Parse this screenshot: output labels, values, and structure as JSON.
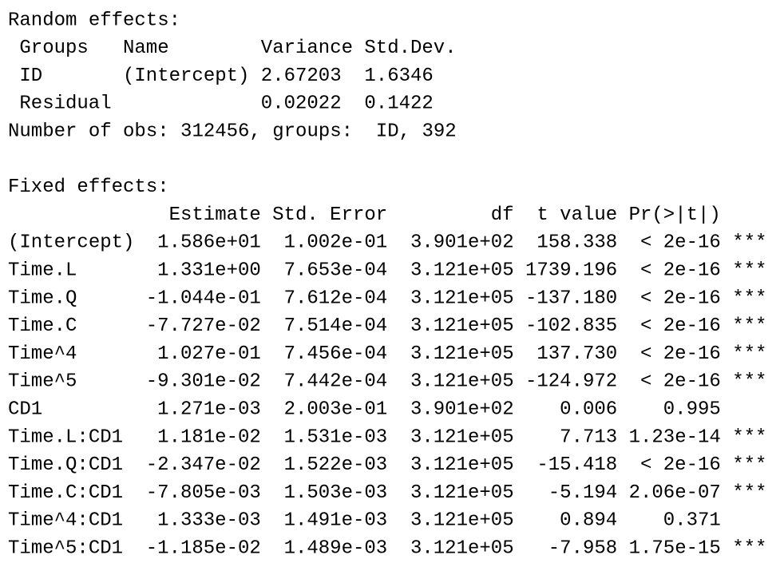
{
  "random_effects": {
    "title": "Random effects:",
    "columns": [
      "Groups",
      "Name",
      "Variance",
      "Std.Dev."
    ],
    "rows": [
      {
        "group": "ID",
        "name": "(Intercept)",
        "variance": "2.67203",
        "std_dev": "1.6346"
      },
      {
        "group": "Residual",
        "variance": "0.02022",
        "std_dev": "0.1422"
      }
    ],
    "summary": "Number of obs: 312456, groups:  ID, 392"
  },
  "fixed_effects": {
    "title": "Fixed effects:",
    "columns": [
      "Estimate",
      "Std. Error",
      "df",
      "t value",
      "Pr(>|t|)"
    ],
    "rows": [
      {
        "term": "(Intercept)",
        "estimate": "1.586e+01",
        "std_error": "1.002e-01",
        "df": "3.901e+02",
        "t_value": "158.338",
        "p_value": "< 2e-16",
        "signif": "***"
      },
      {
        "term": "Time.L",
        "estimate": "1.331e+00",
        "std_error": "7.653e-04",
        "df": "3.121e+05",
        "t_value": "1739.196",
        "p_value": "< 2e-16",
        "signif": "***"
      },
      {
        "term": "Time.Q",
        "estimate": "-1.044e-01",
        "std_error": "7.612e-04",
        "df": "3.121e+05",
        "t_value": "-137.180",
        "p_value": "< 2e-16",
        "signif": "***"
      },
      {
        "term": "Time.C",
        "estimate": "-7.727e-02",
        "std_error": "7.514e-04",
        "df": "3.121e+05",
        "t_value": "-102.835",
        "p_value": "< 2e-16",
        "signif": "***"
      },
      {
        "term": "Time^4",
        "estimate": "1.027e-01",
        "std_error": "7.456e-04",
        "df": "3.121e+05",
        "t_value": "137.730",
        "p_value": "< 2e-16",
        "signif": "***"
      },
      {
        "term": "Time^5",
        "estimate": "-9.301e-02",
        "std_error": "7.442e-04",
        "df": "3.121e+05",
        "t_value": "-124.972",
        "p_value": "< 2e-16",
        "signif": "***"
      },
      {
        "term": "CD1",
        "estimate": "1.271e-03",
        "std_error": "2.003e-01",
        "df": "3.901e+02",
        "t_value": "0.006",
        "p_value": "0.995"
      },
      {
        "term": "Time.L:CD1",
        "estimate": "1.181e-02",
        "std_error": "1.531e-03",
        "df": "3.121e+05",
        "t_value": "7.713",
        "p_value": "1.23e-14",
        "signif": "***"
      },
      {
        "term": "Time.Q:CD1",
        "estimate": "-2.347e-02",
        "std_error": "1.522e-03",
        "df": "3.121e+05",
        "t_value": "-15.418",
        "p_value": "< 2e-16",
        "signif": "***"
      },
      {
        "term": "Time.C:CD1",
        "estimate": "-7.805e-03",
        "std_error": "1.503e-03",
        "df": "3.121e+05",
        "t_value": "-5.194",
        "p_value": "2.06e-07",
        "signif": "***"
      },
      {
        "term": "Time^4:CD1",
        "estimate": "1.333e-03",
        "std_error": "1.491e-03",
        "df": "3.121e+05",
        "t_value": "0.894",
        "p_value": "0.371"
      },
      {
        "term": "Time^5:CD1",
        "estimate": "-1.185e-02",
        "std_error": "1.489e-03",
        "df": "3.121e+05",
        "t_value": "-7.958",
        "p_value": "1.75e-15",
        "signif": "***"
      }
    ]
  }
}
